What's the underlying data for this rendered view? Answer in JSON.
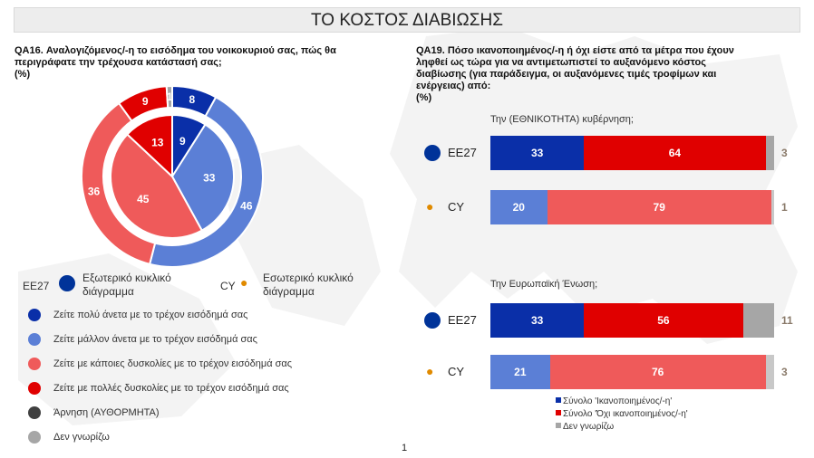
{
  "title": "ΤΟ ΚΟΣΤΟΣ ΔΙΑΒΙΩΣΗΣ",
  "q16": {
    "lines": [
      "QA16. Αναλογιζόμενος/-η το εισόδημα του νοικοκυριού σας, πώς θα",
      "περιγράφατε την τρέχουσα κατάστασή σας;",
      "(%)"
    ],
    "cmp_eu": "EE27",
    "cmp_eu_desc": [
      "Εξωτερικό κυκλικό",
      "διάγραμμα"
    ],
    "cmp_cy": "CY",
    "cmp_cy_desc": [
      "Εσωτερικό κυκλικό",
      "διάγραμμα"
    ],
    "legend": [
      {
        "label": "Ζείτε πολύ άνετα με το τρέχον εισόδημά σας",
        "color": "#0a2fa8"
      },
      {
        "label": "Ζείτε μάλλον άνετα με το τρέχον εισόδημά σας",
        "color": "#5b7fd6"
      },
      {
        "label": "Ζείτε με κάποιες δυσκολίες με το τρέχον εισόδημά σας",
        "color": "#ef5a5a"
      },
      {
        "label": "Ζείτε με πολλές δυσκολίες με το τρέχον εισόδημά σας",
        "color": "#e00000"
      },
      {
        "label": "Άρνηση (ΑΥΘΟΡΜΗΤΑ)",
        "color": "#404040"
      },
      {
        "label": "Δεν γνωρίζω",
        "color": "#a6a6a6"
      }
    ]
  },
  "q19": {
    "lines": [
      "QA19. Πόσο ικανοποιημένος/-η ή όχι είστε από τα μέτρα που έχουν",
      "ληφθεί ως τώρα για να αντιμετωπιστεί το αυξανόμενο κόστος",
      "διαβίωσης (για παράδειγμα, οι αυξανόμενες τιμές τροφίμων και",
      "ενέργειας) από:",
      "(%)"
    ],
    "legend": [
      {
        "label": "Σύνολο 'Ικανοποιημένος/-η'",
        "color": "#0a2fa8"
      },
      {
        "label": "Σύνολο 'Όχι ικανοποιημένος/-η'",
        "color": "#e00000"
      },
      {
        "label": "Δεν γνωρίζω",
        "color": "#a6a6a6"
      }
    ]
  },
  "page_number": "1",
  "chart_data": [
    {
      "type": "pie",
      "title": "QA16",
      "categories": [
        "Ζείτε πολύ άνετα με το τρέχον εισόδημά σας",
        "Ζείτε μάλλον άνετα με το τρέχον εισόδημά σας",
        "Ζείτε με κάποιες δυσκολίες με το τρέχον εισόδημά σας",
        "Ζείτε με πολλές δυσκολίες με το τρέχον εισόδημά σας",
        "Άρνηση (ΑΥΘΟΡΜΗΤΑ)",
        "Δεν γνωρίζω"
      ],
      "colors": [
        "#0a2fa8",
        "#5b7fd6",
        "#ef5a5a",
        "#e00000",
        "#404040",
        "#a6a6a6"
      ],
      "series": [
        {
          "name": "EE27",
          "values": [
            8,
            46,
            36,
            9,
            0,
            1
          ],
          "labels": [
            "8",
            "46",
            "36",
            "9",
            "",
            "1"
          ]
        },
        {
          "name": "CY",
          "values": [
            9,
            33,
            45,
            13,
            0,
            0
          ],
          "labels": [
            "9",
            "33",
            "45",
            "13",
            "",
            ""
          ]
        }
      ]
    },
    {
      "type": "bar",
      "stacked": true,
      "orientation": "horizontal",
      "title": "QA19",
      "groups": [
        {
          "label": "Την (ΕΘΝΙΚΟΤΗΤΑ) κυβέρνηση;",
          "rows": [
            {
              "label": "EE27",
              "values": [
                33,
                64,
                3
              ]
            },
            {
              "label": "CY",
              "values": [
                20,
                79,
                1
              ]
            }
          ]
        },
        {
          "label": "Την Ευρωπαϊκή Ένωση;",
          "rows": [
            {
              "label": "EE27",
              "values": [
                33,
                56,
                11
              ]
            },
            {
              "label": "CY",
              "values": [
                21,
                76,
                3
              ]
            }
          ]
        }
      ],
      "series_names": [
        "Σύνολο 'Ικανοποιημένος/-η'",
        "Σύνολο 'Όχι ικανοποιημένος/-η'",
        "Δεν γνωρίζω"
      ],
      "colors_eu": [
        "#0a2fa8",
        "#e00000",
        "#a6a6a6"
      ],
      "colors_cy": [
        "#5b7fd6",
        "#ef5a5a",
        "#c8c8c8"
      ]
    }
  ]
}
